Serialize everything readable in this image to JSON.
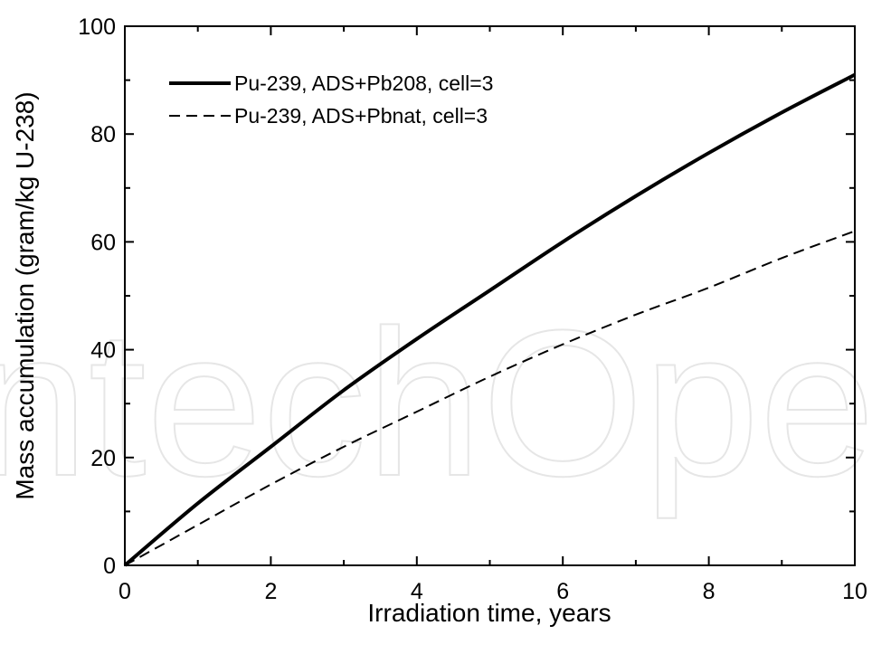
{
  "watermark": {
    "text": "ntechOpen"
  },
  "chart_data": {
    "type": "line",
    "title": "",
    "xlabel": "Irradiation time,  years",
    "ylabel": "Mass accumulation (gram/kg U-238)",
    "xlim": [
      0,
      10
    ],
    "ylim": [
      0,
      100
    ],
    "xticks": [
      0,
      2,
      4,
      6,
      8,
      10
    ],
    "yticks": [
      0,
      20,
      40,
      60,
      80,
      100
    ],
    "x_minor_step": 1,
    "y_minor_step": 10,
    "grid": false,
    "legend_position": "top-left",
    "x": [
      0,
      1,
      2,
      3,
      4,
      5,
      6,
      7,
      8,
      9,
      10
    ],
    "series": [
      {
        "name": "Pu-239, ADS+Pb208, cell=3",
        "style": "solid",
        "color": "#000000",
        "values": [
          0,
          11.5,
          22,
          32.5,
          42,
          51,
          60,
          68.5,
          76.5,
          84,
          91
        ]
      },
      {
        "name": "Pu-239, ADS+Pbnat, cell=3",
        "style": "dashed",
        "color": "#000000",
        "values": [
          0,
          7.5,
          15,
          22,
          28.5,
          35,
          41,
          46.5,
          51.5,
          57,
          62
        ]
      }
    ]
  }
}
